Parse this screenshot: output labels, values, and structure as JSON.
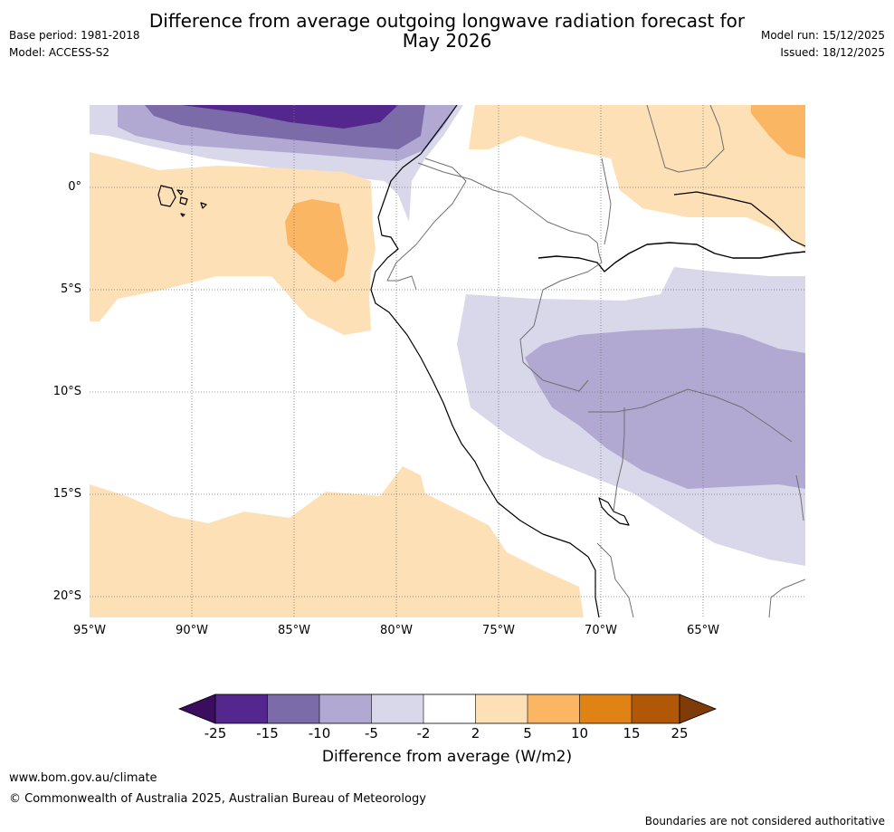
{
  "header": {
    "title_line1": "Difference from average outgoing longwave radiation forecast for",
    "title_line2": "May 2026",
    "base_period": "Base period: 1981-2018",
    "model": "Model: ACCESS-S2",
    "model_run": "Model run: 15/12/2025",
    "issued": "Issued: 18/12/2025"
  },
  "map": {
    "lat_labels": [
      "0°",
      "5°S",
      "10°S",
      "15°S",
      "20°S"
    ],
    "lon_labels": [
      "95°W",
      "90°W",
      "85°W",
      "80°W",
      "75°W",
      "70°W",
      "65°W"
    ],
    "colors": {
      "lt_m25": "#3b0d5e",
      "m25_m15": "#54278f",
      "m15_m10": "#7b6ba8",
      "m10_m5": "#b1a9d1",
      "m5_m2": "#d9d8ea",
      "m2_2": "#ffffff",
      "p2_5": "#fde0b6",
      "p5_10": "#fbb663",
      "p10_15": "#e08314",
      "p15_25": "#b05807",
      "gt_25": "#7f3b08",
      "coast": "#000000",
      "border": "#707070"
    }
  },
  "colorbar": {
    "ticks": [
      "-25",
      "-15",
      "-10",
      "-5",
      "-2",
      "2",
      "5",
      "10",
      "15",
      "25"
    ],
    "label": "Difference from average (W/m2)"
  },
  "footer": {
    "url": "www.bom.gov.au/climate",
    "copyright": "© Commonwealth of Australia 2025, Australian Bureau of Meteorology",
    "disclaimer": "Boundaries are not considered authoritative"
  }
}
